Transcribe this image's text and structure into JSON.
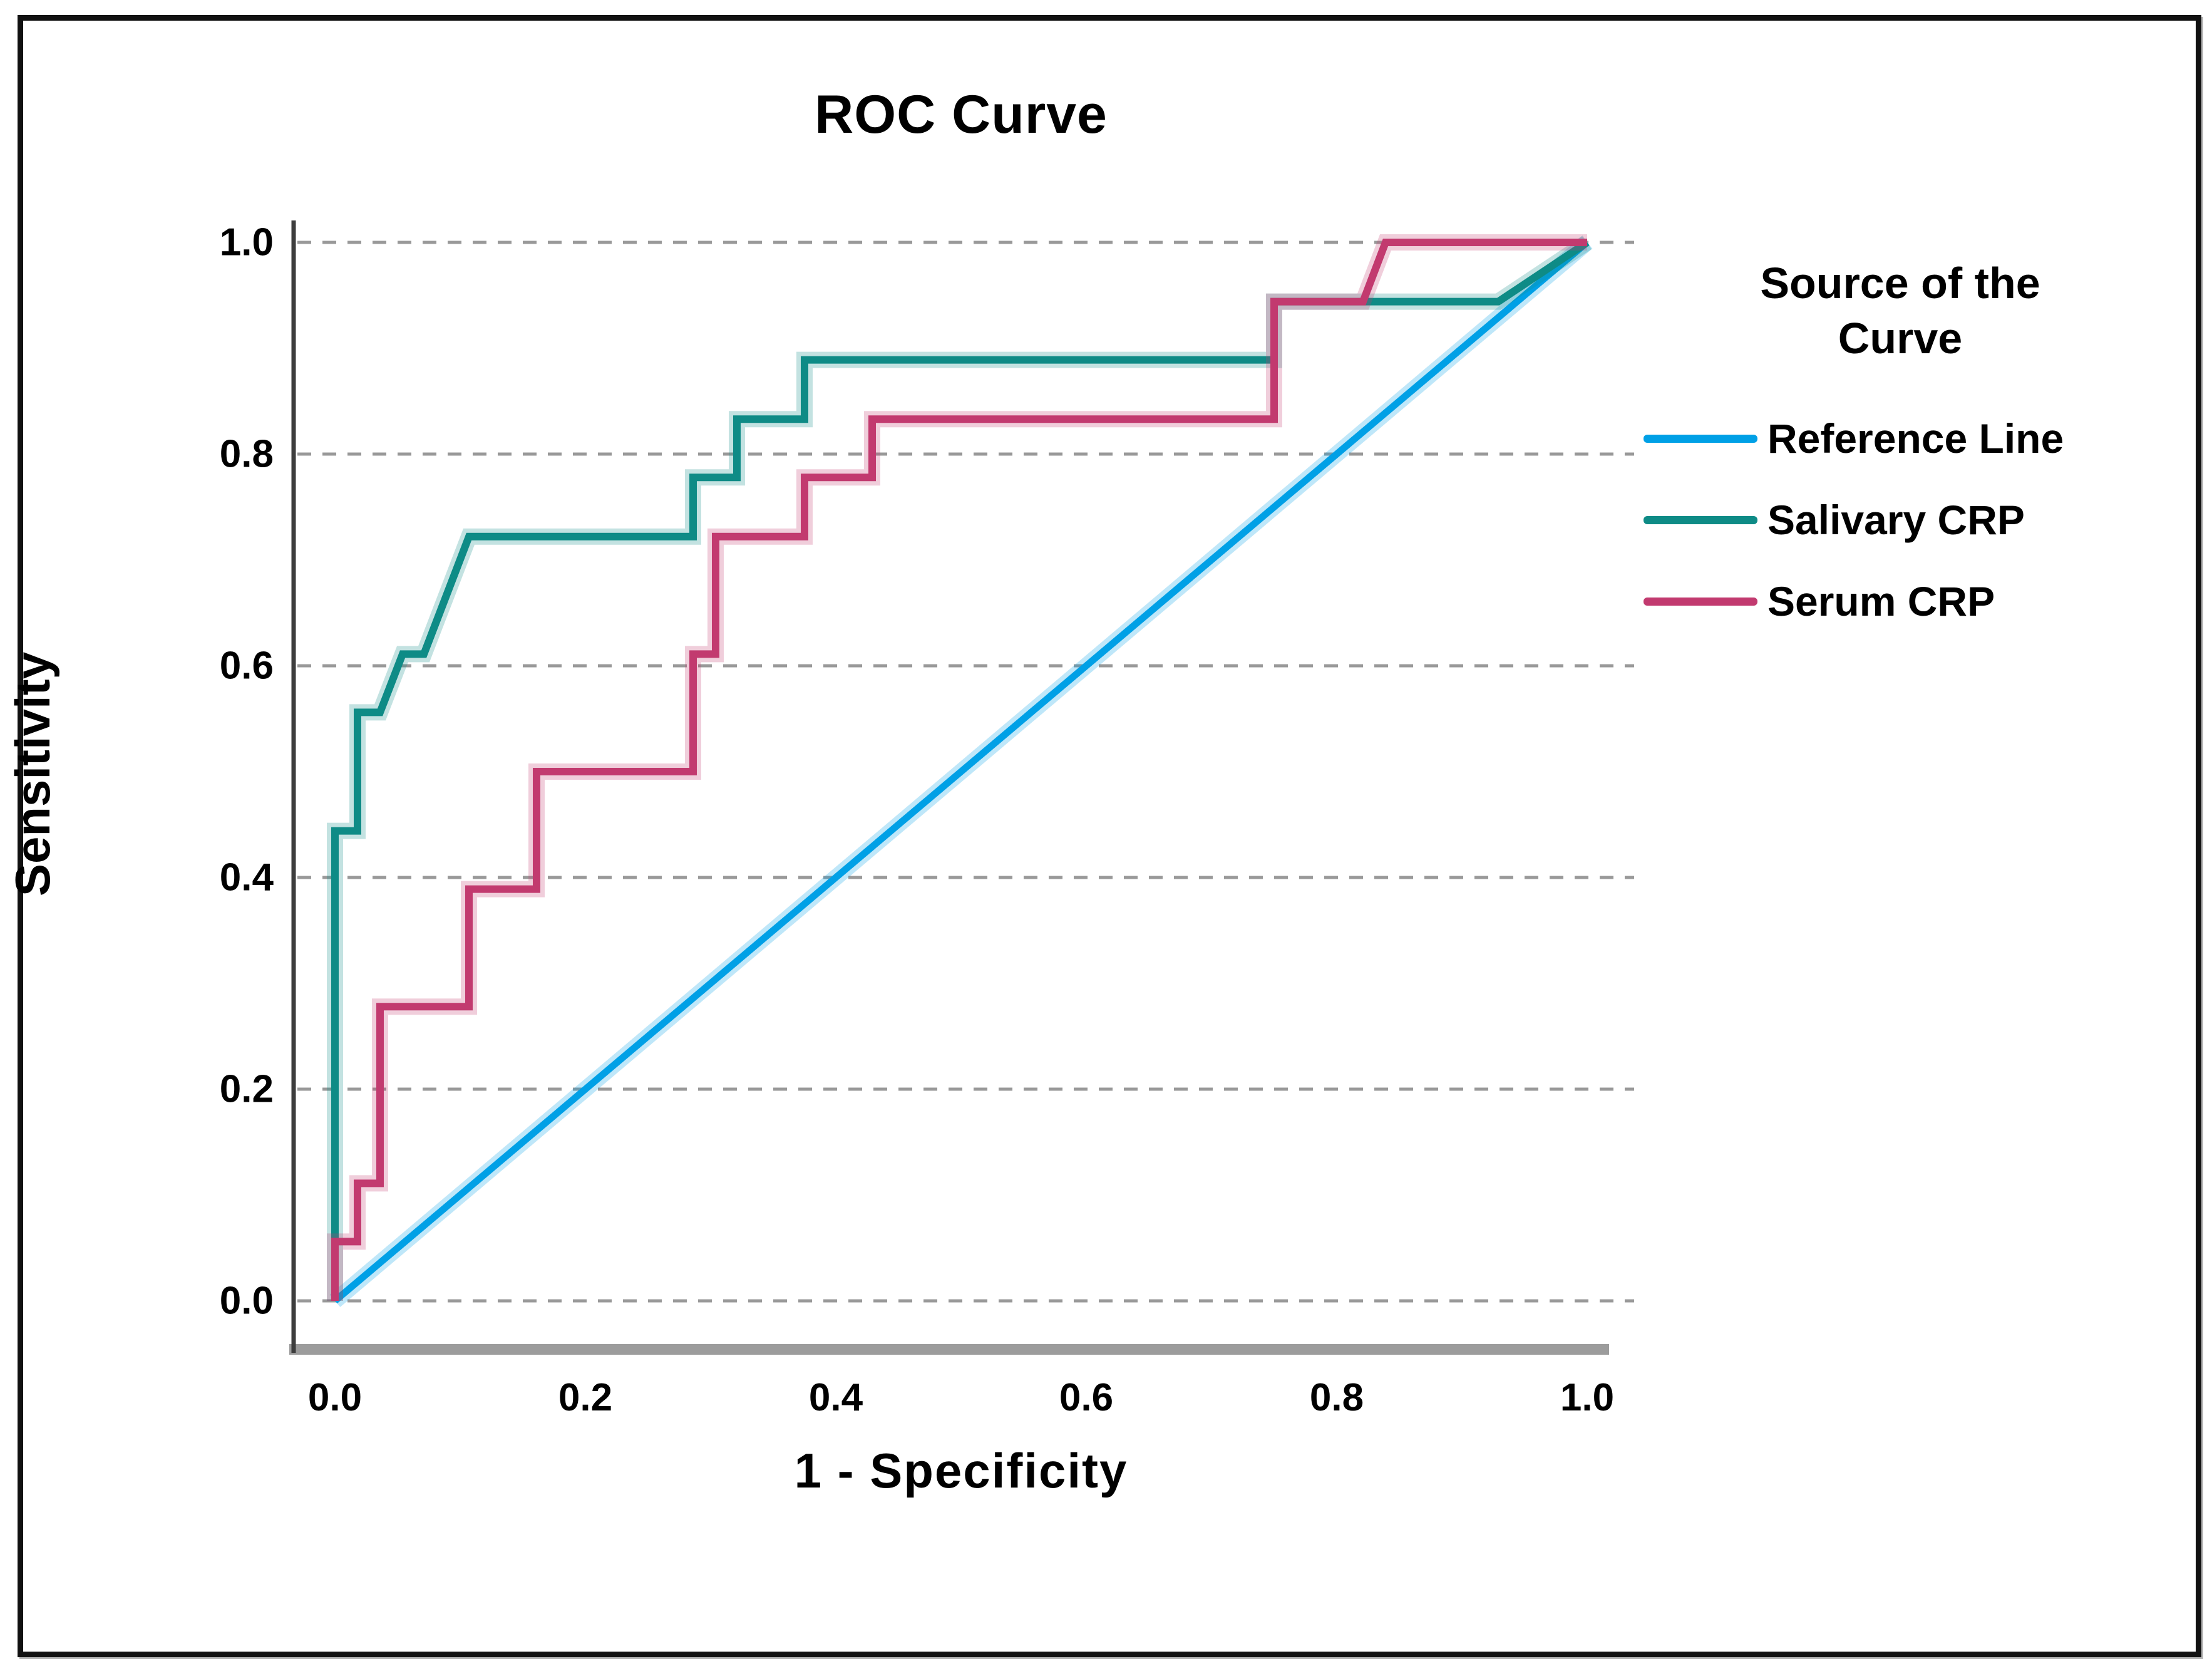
{
  "figure_title": "ROC Curve",
  "chart_data": {
    "type": "line",
    "subtype": "roc-step-curves",
    "title": "ROC Curve",
    "xlabel": "1 - Specificity",
    "ylabel": "Sensitivity",
    "xlim": [
      0.0,
      1.0
    ],
    "ylim": [
      0.0,
      1.0
    ],
    "x_ticks": [
      0.0,
      0.2,
      0.4,
      0.6,
      0.8,
      1.0
    ],
    "x_tick_labels": [
      "0.0",
      "0.2",
      "0.4",
      "0.6",
      "0.8",
      "1.0"
    ],
    "y_ticks": [
      0.0,
      0.2,
      0.4,
      0.6,
      0.8,
      1.0
    ],
    "y_tick_labels": [
      "0.0",
      "0.2",
      "0.4",
      "0.6",
      "0.8",
      "1.0"
    ],
    "grid": "horizontal-dashed",
    "gridline_color": "#999999",
    "axis_line_color": "#3d3d3d",
    "baseline_color": "#9c9c9c",
    "legend_position": "right",
    "series": [
      {
        "name": "Reference Line",
        "color": "#00A0E6",
        "x": [
          0.0,
          1.0
        ],
        "y": [
          0.0,
          1.0
        ]
      },
      {
        "name": "Salivary CRP",
        "color": "#0E8B86",
        "x": [
          0.0,
          0.0,
          0.018,
          0.018,
          0.036,
          0.054,
          0.071,
          0.107,
          0.286,
          0.286,
          0.321,
          0.321,
          0.375,
          0.375,
          0.75,
          0.75,
          0.929,
          1.0
        ],
        "y": [
          0.0,
          0.444,
          0.444,
          0.556,
          0.556,
          0.611,
          0.611,
          0.722,
          0.722,
          0.778,
          0.778,
          0.833,
          0.833,
          0.889,
          0.889,
          0.944,
          0.944,
          1.0
        ]
      },
      {
        "name": "Serum CRP",
        "color": "#C23A6F",
        "x": [
          0.0,
          0.0,
          0.018,
          0.018,
          0.036,
          0.036,
          0.107,
          0.107,
          0.161,
          0.161,
          0.286,
          0.286,
          0.304,
          0.304,
          0.375,
          0.375,
          0.429,
          0.429,
          0.75,
          0.75,
          0.821,
          0.839,
          1.0
        ],
        "y": [
          0.0,
          0.056,
          0.056,
          0.111,
          0.111,
          0.278,
          0.278,
          0.389,
          0.389,
          0.5,
          0.5,
          0.611,
          0.611,
          0.722,
          0.722,
          0.778,
          0.778,
          0.833,
          0.833,
          0.944,
          0.944,
          1.0,
          1.0
        ]
      }
    ]
  },
  "legend": {
    "title": "Source of the Curve",
    "items": [
      {
        "label": "Reference Line"
      },
      {
        "label": "Salivary CRP"
      },
      {
        "label": "Serum CRP"
      }
    ]
  }
}
